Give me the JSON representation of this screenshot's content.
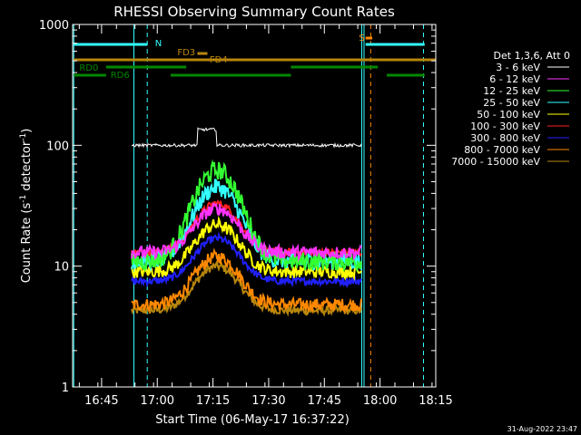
{
  "chart_data": {
    "type": "line",
    "title": "RHESSI Observing Summary Count Rates",
    "xlabel": "Start Time (06-May-17 16:37:22)",
    "ylabel_main": "Count Rate (s",
    "ylabel_sup1": "-1",
    "ylabel_mid": " detector",
    "ylabel_sup2": "-1",
    "ylabel_end": ")",
    "yscale": "log",
    "ylim": [
      1,
      1000
    ],
    "xlim_minutes": [
      16.62,
      18.25
    ],
    "x_ticks": [
      {
        "label": "16:45",
        "value": 16.75
      },
      {
        "label": "17:00",
        "value": 17.0
      },
      {
        "label": "17:15",
        "value": 17.25
      },
      {
        "label": "17:30",
        "value": 17.5
      },
      {
        "label": "17:45",
        "value": 17.75
      },
      {
        "label": "18:00",
        "value": 18.0
      },
      {
        "label": "18:15",
        "value": 18.25
      }
    ],
    "y_ticks": [
      {
        "label": "1",
        "value": 1
      },
      {
        "label": "10",
        "value": 10
      },
      {
        "label": "100",
        "value": 100
      },
      {
        "label": "1000",
        "value": 1000
      }
    ],
    "legend_header": "Det 1,3,6, Att 0",
    "legend_position": "right",
    "series": [
      {
        "name": "3 - 6 keV",
        "color": "#ffffff",
        "base": 100,
        "peak": 135,
        "noise": 0.03
      },
      {
        "name": "6 - 12 keV",
        "color": "#ff33ff",
        "base": 13,
        "peak": 30,
        "noise": 0.12
      },
      {
        "name": "12 - 25 keV",
        "color": "#33ff33",
        "base": 11,
        "peak": 62,
        "noise": 0.18
      },
      {
        "name": "25 - 50 keV",
        "color": "#33ffff",
        "base": 11,
        "peak": 45,
        "noise": 0.16
      },
      {
        "name": "50 - 100 keV",
        "color": "#ffff00",
        "base": 9,
        "peak": 22,
        "noise": 0.12
      },
      {
        "name": "100 - 300 keV",
        "color": "#ff2020",
        "base": 13,
        "peak": 33,
        "noise": 0.07
      },
      {
        "name": "300 - 800 keV",
        "color": "#2020ff",
        "base": 7.5,
        "peak": 17,
        "noise": 0.07
      },
      {
        "name": "800 - 7000 keV",
        "color": "#ff8800",
        "base": 4.8,
        "peak": 12,
        "noise": 0.12
      },
      {
        "name": "7000 - 15000 keV",
        "color": "#b8860b",
        "base": 4.3,
        "peak": 10,
        "noise": 0.08
      }
    ],
    "flags": [
      {
        "label": "N",
        "color": "#33ffff"
      },
      {
        "label": "S",
        "color": "#ff8800"
      },
      {
        "label": "FD3",
        "color": "#b8860b"
      },
      {
        "label": "FD4",
        "color": "#b8860b"
      },
      {
        "label": "RD0",
        "color": "#008800"
      },
      {
        "label": "RD6",
        "color": "#008800"
      }
    ]
  },
  "footer_date": "31-Aug-2022 23:47"
}
